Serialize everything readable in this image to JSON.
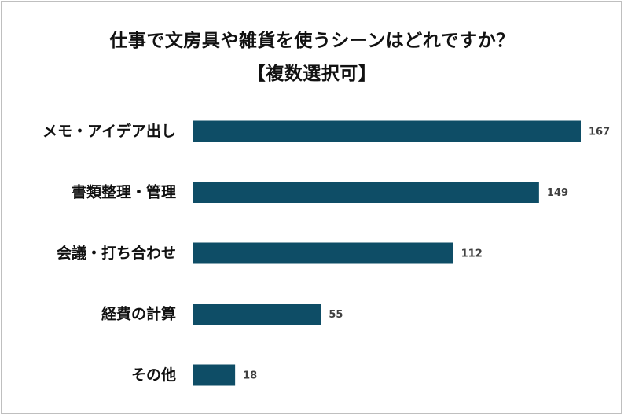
{
  "chart_data": {
    "type": "bar",
    "orientation": "horizontal",
    "title": "仕事で文房具や雑貨を使うシーンはどれですか？",
    "subtitle": "【複数選択可】",
    "categories": [
      "メモ・アイデア出し",
      "書類整理・管理",
      "会議・打ち合わせ",
      "経費の計算",
      "その他"
    ],
    "values": [
      167,
      149,
      112,
      55,
      18
    ],
    "xlabel": "",
    "ylabel": "",
    "xlim": [
      0,
      170
    ],
    "grid": false,
    "legend": "none",
    "bar_color": "#0e4d66",
    "data_labels": true
  }
}
